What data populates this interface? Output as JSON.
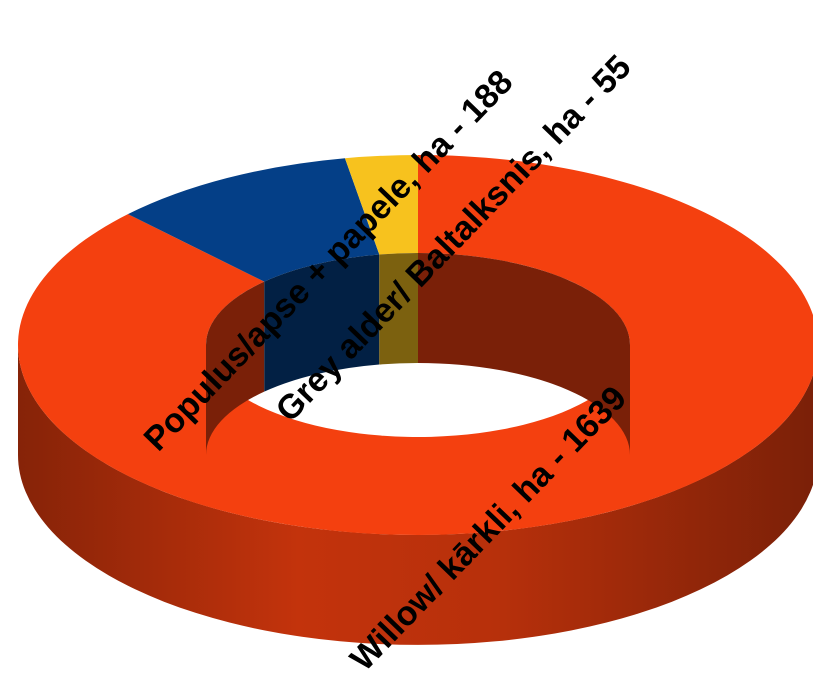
{
  "chart_data": {
    "type": "pie",
    "style": "3d-donut",
    "title": "",
    "start_angle_deg": 0,
    "clockwise": true,
    "slices": [
      {
        "label": "Willow/ kārkli, ha - 1639",
        "value": 1639,
        "color": "#f4400f"
      },
      {
        "label": "Populus/apse + papele, ha - 188",
        "value": 188,
        "color": "#043f87"
      },
      {
        "label": "Grey alder/ Baltalksnis, ha - 55",
        "value": 55,
        "color": "#f7c21e"
      }
    ]
  }
}
